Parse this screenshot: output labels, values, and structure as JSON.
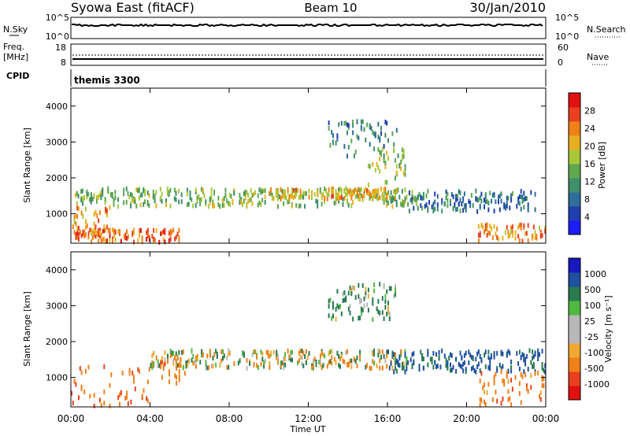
{
  "header": {
    "title": "Syowa East (fitACF)",
    "beam": "Beam 10",
    "date": "30/Jan/2010"
  },
  "nsky_panel": {
    "left_label": "N.Sky",
    "right_label": "N.Search",
    "left_ticks": [
      "10^5",
      "10^0"
    ],
    "right_ticks": [
      "10^5",
      "10^0"
    ]
  },
  "freq_panel": {
    "left_label_1": "Freq.",
    "left_label_2": "[MHz]",
    "right_label": "Nave",
    "left_ticks": [
      "18",
      "8"
    ],
    "right_ticks": [
      "60",
      "0"
    ]
  },
  "cpid": {
    "label": "CPID",
    "value": "themis 3300"
  },
  "colors": {
    "power_scale": [
      "#1c1cff",
      "#1f3fb0",
      "#2d6e9a",
      "#3f8f6a",
      "#5fa850",
      "#a8c83a",
      "#e8b020",
      "#f08018",
      "#ea4020",
      "#e01010"
    ],
    "velocity_scale": [
      "#e01010",
      "#ea4020",
      "#f08018",
      "#f0a830",
      "#b8b8b8",
      "#b8b8b8",
      "#50b840",
      "#2a7a50",
      "#2050a0",
      "#1818c0"
    ]
  },
  "chart_data": [
    {
      "type": "heatmap",
      "panel": "power",
      "ylabel": "Slant Range [km]",
      "yticks": [
        "1000",
        "2000",
        "3000",
        "4000"
      ],
      "ylim": [
        180,
        4500
      ],
      "colorbar_label": "Power [dB]",
      "colorbar_ticks": [
        "4",
        "8",
        "12",
        "16",
        "20",
        "24",
        "28"
      ],
      "colorbar_range": [
        0,
        30
      ],
      "xlim_hours": [
        0,
        24
      ],
      "features": [
        {
          "t0": 0.2,
          "t1": 17.5,
          "r_center": 1450,
          "r_width": 250,
          "value": 14
        },
        {
          "t0": 10.0,
          "t1": 16.5,
          "r_center": 1550,
          "r_width": 150,
          "value": 20
        },
        {
          "t0": 17.0,
          "t1": 23.5,
          "r_center": 1350,
          "r_width": 300,
          "value": 8
        },
        {
          "t0": 0.0,
          "t1": 5.5,
          "r_center": 350,
          "r_width": 200,
          "value": 24
        },
        {
          "t0": 20.5,
          "t1": 24.0,
          "r_center": 400,
          "r_width": 300,
          "value": 22
        },
        {
          "t0": 13.0,
          "t1": 16.5,
          "r_center": 3100,
          "r_width": 500,
          "value": 10
        },
        {
          "t0": 15.0,
          "t1": 17.0,
          "r_center": 2300,
          "r_width": 500,
          "value": 16
        },
        {
          "t0": 0.0,
          "t1": 2.0,
          "r_center": 800,
          "r_width": 400,
          "value": 22
        }
      ]
    },
    {
      "type": "heatmap",
      "panel": "velocity",
      "ylabel": "Slant Range [km]",
      "yticks": [
        "1000",
        "2000",
        "3000",
        "4000"
      ],
      "ylim": [
        180,
        4500
      ],
      "colorbar_label": "Velocity [m s⁻¹]",
      "colorbar_ticks": [
        "1000",
        "500",
        "100",
        "25",
        "-25",
        "-100",
        "-500",
        "-1000"
      ],
      "xlim_hours": [
        0,
        24
      ],
      "xticks": [
        "00:00",
        "04:00",
        "08:00",
        "12:00",
        "16:00",
        "20:00",
        "00:00"
      ],
      "xlabel": "Time UT",
      "features": [
        {
          "t0": 4.0,
          "t1": 17.0,
          "r_center": 1500,
          "r_width": 250,
          "value": 0
        },
        {
          "t0": 0.0,
          "t1": 4.0,
          "r_center": 500,
          "r_width": 800,
          "value": -400
        },
        {
          "t0": 16.0,
          "t1": 24.0,
          "r_center": 1450,
          "r_width": 300,
          "value": 600
        },
        {
          "t0": 13.0,
          "t1": 16.5,
          "r_center": 3100,
          "r_width": 500,
          "value": 200
        },
        {
          "t0": 20.5,
          "t1": 24.0,
          "r_center": 600,
          "r_width": 600,
          "value": -300
        },
        {
          "t0": 4.5,
          "t1": 5.8,
          "r_center": 1200,
          "r_width": 400,
          "value": -300
        }
      ]
    }
  ]
}
